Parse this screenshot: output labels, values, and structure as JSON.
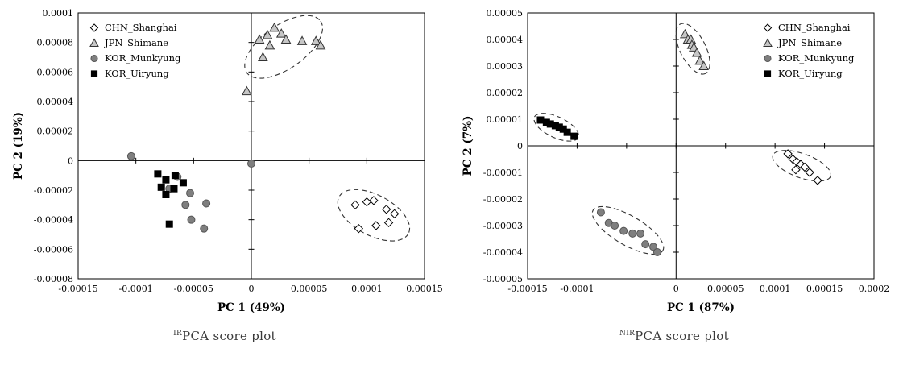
{
  "figures": [
    {
      "sup": "IR",
      "text": "PCA score plot"
    },
    {
      "sup": "NIR",
      "text": "PCA score plot"
    }
  ],
  "palette": {
    "diamond_fill": "#ffffff",
    "triangle_fill": "#c6c6c6",
    "circle_fill": "#7f7f7f",
    "square_fill": "#000000",
    "axis_color": "#000000",
    "ellipse_color": "#333333"
  },
  "chart_data": [
    {
      "type": "scatter",
      "title": "IR PCA score plot",
      "xlabel": "PC 1 (49%)",
      "ylabel": "PC 2 (19%)",
      "xlim": [
        -0.00015,
        0.00015
      ],
      "ylim": [
        -8e-05,
        0.0001
      ],
      "legend_position": "top-left",
      "grid": false,
      "xticks": [
        {
          "v": -0.00015,
          "label": "-0.00015"
        },
        {
          "v": -0.0001,
          "label": "-0.0001"
        },
        {
          "v": -5e-05,
          "label": "-0.00005"
        },
        {
          "v": 0,
          "label": "0"
        },
        {
          "v": 5e-05,
          "label": "0.00005"
        },
        {
          "v": 0.0001,
          "label": "0.0001"
        },
        {
          "v": 0.00015,
          "label": "0.00015"
        }
      ],
      "yticks": [
        {
          "v": -8e-05,
          "label": "-0.00008"
        },
        {
          "v": -6e-05,
          "label": "-0.00006"
        },
        {
          "v": -4e-05,
          "label": "-0.00004"
        },
        {
          "v": -2e-05,
          "label": "-0.00002"
        },
        {
          "v": 0,
          "label": "0"
        },
        {
          "v": 2e-05,
          "label": "0.00002"
        },
        {
          "v": 4e-05,
          "label": "0.00004"
        },
        {
          "v": 6e-05,
          "label": "0.00006"
        },
        {
          "v": 8e-05,
          "label": "0.00008"
        },
        {
          "v": 0.0001,
          "label": "0.0001"
        }
      ],
      "series": [
        {
          "name": "CHN_Shanghai",
          "marker": "diamond",
          "fill": "#ffffff",
          "stroke": "#000000",
          "points": [
            [
              9e-05,
              -3e-05
            ],
            [
              0.0001,
              -2.8e-05
            ],
            [
              0.000106,
              -2.7e-05
            ],
            [
              0.000117,
              -3.3e-05
            ],
            [
              0.000124,
              -3.6e-05
            ],
            [
              0.000119,
              -4.2e-05
            ],
            [
              0.000108,
              -4.4e-05
            ],
            [
              9.3e-05,
              -4.6e-05
            ]
          ]
        },
        {
          "name": "JPN_Shimane",
          "marker": "triangle",
          "fill": "#c6c6c6",
          "stroke": "#333333",
          "points": [
            [
              7e-06,
              8.2e-05
            ],
            [
              1.4e-05,
              8.5e-05
            ],
            [
              2e-05,
              9e-05
            ],
            [
              2.6e-05,
              8.6e-05
            ],
            [
              3e-05,
              8.2e-05
            ],
            [
              1.6e-05,
              7.8e-05
            ],
            [
              4.4e-05,
              8.1e-05
            ],
            [
              5.6e-05,
              8.1e-05
            ],
            [
              6e-05,
              7.8e-05
            ],
            [
              1e-05,
              7e-05
            ],
            [
              -4e-06,
              4.7e-05
            ]
          ]
        },
        {
          "name": "KOR_Munkyung",
          "marker": "circle",
          "fill": "#7f7f7f",
          "stroke": "#555555",
          "points": [
            [
              -0.000104,
              3e-06
            ],
            [
              -6.4e-05,
              -1.1e-05
            ],
            [
              -7.1e-05,
              -1.9e-05
            ],
            [
              -5.3e-05,
              -2.2e-05
            ],
            [
              -5.7e-05,
              -3e-05
            ],
            [
              -3.9e-05,
              -2.9e-05
            ],
            [
              -5.2e-05,
              -4e-05
            ],
            [
              -4.1e-05,
              -4.6e-05
            ],
            [
              0,
              -2e-06
            ]
          ]
        },
        {
          "name": "KOR_Uiryung",
          "marker": "square",
          "fill": "#000000",
          "stroke": "#000000",
          "points": [
            [
              -8.1e-05,
              -9e-06
            ],
            [
              -7.4e-05,
              -1.3e-05
            ],
            [
              -6.6e-05,
              -1e-05
            ],
            [
              -7.8e-05,
              -1.8e-05
            ],
            [
              -6.7e-05,
              -1.9e-05
            ],
            [
              -5.9e-05,
              -1.5e-05
            ],
            [
              -7.4e-05,
              -2.3e-05
            ],
            [
              -7.1e-05,
              -4.3e-05
            ]
          ]
        }
      ],
      "ellipses": [
        {
          "cx": 2.8e-05,
          "cy": 7.7e-05,
          "rx": 3.9e-05,
          "ry": 1.47e-05,
          "rot": -35
        },
        {
          "cx": 0.000106,
          "cy": -3.7e-05,
          "rx": 3.4e-05,
          "ry": 1.37e-05,
          "rot": 28
        }
      ]
    },
    {
      "type": "scatter",
      "title": "NIR PCA score plot",
      "xlabel": "PC 1 (87%)",
      "ylabel": "PC 2 (7%)",
      "xlim": [
        -0.00015,
        0.0002
      ],
      "ylim": [
        -5e-05,
        5e-05
      ],
      "legend_position": "top-right",
      "grid": false,
      "xticks": [
        {
          "v": -0.00015,
          "label": "-0.00015"
        },
        {
          "v": -0.0001,
          "label": "-0.0001"
        },
        {
          "v": -5e-05,
          "label": ""
        },
        {
          "v": 0,
          "label": "0"
        },
        {
          "v": 5e-05,
          "label": "0.00005"
        },
        {
          "v": 0.0001,
          "label": "0.0001"
        },
        {
          "v": 0.00015,
          "label": "0.00015"
        },
        {
          "v": 0.0002,
          "label": "0.0002"
        }
      ],
      "yticks": [
        {
          "v": -5e-05,
          "label": "-0.00005"
        },
        {
          "v": -4e-05,
          "label": "-0.00004"
        },
        {
          "v": -3e-05,
          "label": "-0.00003"
        },
        {
          "v": -2e-05,
          "label": "-0.00002"
        },
        {
          "v": -1e-05,
          "label": "-0.00001"
        },
        {
          "v": 0,
          "label": "0"
        },
        {
          "v": 1e-05,
          "label": "0.00001"
        },
        {
          "v": 2e-05,
          "label": "0.00002"
        },
        {
          "v": 3e-05,
          "label": "0.00003"
        },
        {
          "v": 4e-05,
          "label": "0.00004"
        },
        {
          "v": 5e-05,
          "label": "0.00005"
        }
      ],
      "series": [
        {
          "name": "CHN_Shanghai",
          "marker": "diamond",
          "fill": "#ffffff",
          "stroke": "#000000",
          "points": [
            [
              0.000113,
              -3e-06
            ],
            [
              0.000118,
              -5e-06
            ],
            [
              0.000122,
              -6e-06
            ],
            [
              0.000126,
              -7e-06
            ],
            [
              0.000121,
              -9e-06
            ],
            [
              0.00013,
              -8e-06
            ],
            [
              0.000135,
              -1e-05
            ],
            [
              0.000143,
              -1.3e-05
            ]
          ]
        },
        {
          "name": "JPN_Shimane",
          "marker": "triangle",
          "fill": "#c6c6c6",
          "stroke": "#333333",
          "points": [
            [
              9e-06,
              4.2e-05
            ],
            [
              1.2e-05,
              4e-05
            ],
            [
              1.5e-05,
              4e-05
            ],
            [
              1.6e-05,
              3.8e-05
            ],
            [
              1.8e-05,
              3.7e-05
            ],
            [
              2.1e-05,
              3.5e-05
            ],
            [
              2.4e-05,
              3.2e-05
            ],
            [
              2.8e-05,
              3e-05
            ]
          ]
        },
        {
          "name": "KOR_Munkyung",
          "marker": "circle",
          "fill": "#7f7f7f",
          "stroke": "#555555",
          "points": [
            [
              -7.6e-05,
              -2.5e-05
            ],
            [
              -6.8e-05,
              -2.9e-05
            ],
            [
              -6.2e-05,
              -3e-05
            ],
            [
              -5.3e-05,
              -3.2e-05
            ],
            [
              -4.4e-05,
              -3.3e-05
            ],
            [
              -3.6e-05,
              -3.3e-05
            ],
            [
              -3.1e-05,
              -3.7e-05
            ],
            [
              -2.3e-05,
              -3.8e-05
            ],
            [
              -1.9e-05,
              -4e-05
            ]
          ]
        },
        {
          "name": "KOR_Uiryung",
          "marker": "square",
          "fill": "#000000",
          "stroke": "#000000",
          "points": [
            [
              -0.000137,
              9.7e-06
            ],
            [
              -0.000131,
              8.8e-06
            ],
            [
              -0.000127,
              8.2e-06
            ],
            [
              -0.000122,
              7.6e-06
            ],
            [
              -0.000118,
              7e-06
            ],
            [
              -0.000114,
              6.3e-06
            ],
            [
              -0.00011,
              5.1e-06
            ],
            [
              -0.000103,
              3.6e-06
            ]
          ]
        }
      ],
      "ellipses": [
        {
          "cx": 1.7e-05,
          "cy": 3.65e-05,
          "rx": 2.8e-05,
          "ry": 4.8e-06,
          "rot": 63
        },
        {
          "cx": -0.000121,
          "cy": 7e-06,
          "rx": 2.44e-05,
          "ry": 3.9e-06,
          "rot": 25
        },
        {
          "cx": -4.86e-05,
          "cy": -3.18e-05,
          "rx": 4.07e-05,
          "ry": 5.5e-06,
          "rot": 30
        },
        {
          "cx": 0.000127,
          "cy": -7.5e-06,
          "rx": 3.1e-05,
          "ry": 4.5e-06,
          "rot": 20
        }
      ]
    }
  ]
}
